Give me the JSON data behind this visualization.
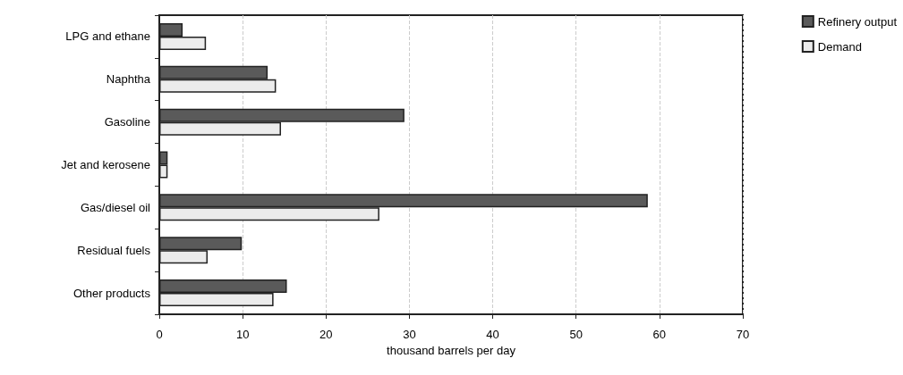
{
  "chart_data": {
    "type": "bar",
    "orientation": "horizontal",
    "xlabel": "thousand barrels per day",
    "categories": [
      "LPG and ethane",
      "Naphtha",
      "Gasoline",
      "Jet and kerosene",
      "Gas/diesel oil",
      "Residual fuels",
      "Other products"
    ],
    "series": [
      {
        "name": "Refinery output",
        "color": "#5a5a5a",
        "values": [
          2.8,
          13.0,
          29.4,
          1.0,
          58.6,
          9.9,
          15.3
        ]
      },
      {
        "name": "Demand",
        "color": "#ececec",
        "values": [
          5.6,
          14.0,
          14.6,
          1.0,
          26.4,
          5.8,
          13.7
        ]
      }
    ],
    "xlim": [
      0,
      70
    ],
    "xticks": [
      0,
      10,
      20,
      30,
      40,
      50,
      60,
      70
    ],
    "grid": "x",
    "legend": "top right"
  }
}
